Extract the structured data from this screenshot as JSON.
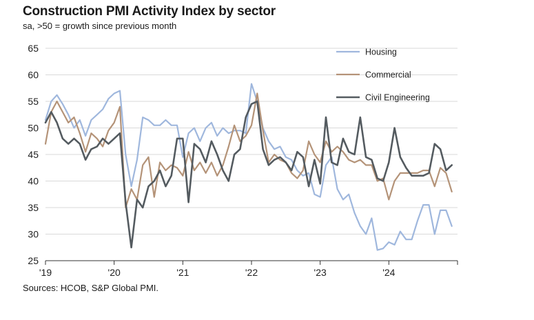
{
  "header": {
    "title": "Construction PMI Activity Index by sector",
    "subtitle": "sa, >50 = growth since previous month"
  },
  "footer": {
    "source": "Sources: HCOB, S&P Global PMI."
  },
  "colors": {
    "Housing": "#9fb7dd",
    "Commercial": "#b49378",
    "Civil Engineering": "#545b60"
  },
  "chart_data": {
    "type": "line",
    "title": "Construction PMI Activity Index by sector",
    "subtitle": "sa, >50 = growth since previous month",
    "xlabel": "",
    "ylabel": "",
    "ylim": [
      25,
      65
    ],
    "yticks": [
      25,
      30,
      35,
      40,
      45,
      50,
      55,
      60,
      65
    ],
    "xlim": [
      2019.0,
      2025.0
    ],
    "xticks": [
      {
        "label": "'19",
        "x": 2019.0
      },
      {
        "label": "'20",
        "x": 2020.0
      },
      {
        "label": "'21",
        "x": 2021.0
      },
      {
        "label": "'22",
        "x": 2022.0
      },
      {
        "label": "'23",
        "x": 2023.0
      },
      {
        "label": "'24",
        "x": 2024.0
      }
    ],
    "grid": true,
    "legend": "top-right",
    "x_start": "2019-01",
    "series": [
      {
        "name": "Housing",
        "values": [
          51.5,
          55.0,
          56.2,
          54.5,
          52.5,
          50.0,
          51.5,
          48.5,
          51.5,
          52.5,
          53.5,
          55.5,
          56.5,
          57.0,
          45.0,
          39.0,
          44.0,
          52.0,
          51.5,
          50.5,
          50.5,
          51.5,
          50.5,
          50.5,
          44.5,
          49.0,
          50.0,
          47.5,
          50.0,
          51.0,
          48.5,
          50.0,
          49.0,
          49.5,
          49.5,
          49.0,
          58.3,
          55.0,
          50.0,
          47.5,
          46.0,
          46.5,
          44.5,
          44.0,
          42.0,
          41.0,
          41.5,
          37.5,
          37.0,
          43.0,
          44.5,
          38.5,
          36.5,
          37.5,
          34.0,
          31.5,
          30.0,
          33.0,
          27.0,
          27.3,
          28.5,
          28.0,
          30.5,
          29.0,
          29.0,
          32.5,
          35.5,
          35.5,
          30.0,
          34.5,
          34.5,
          31.5
        ]
      },
      {
        "name": "Commercial",
        "values": [
          47.0,
          53.0,
          55.0,
          53.0,
          51.0,
          52.0,
          49.0,
          45.5,
          49.0,
          48.0,
          46.5,
          49.5,
          51.0,
          54.0,
          35.0,
          38.5,
          36.5,
          43.0,
          44.5,
          37.0,
          43.5,
          42.0,
          43.0,
          42.5,
          41.0,
          45.5,
          42.0,
          43.5,
          41.5,
          43.5,
          41.0,
          43.0,
          46.5,
          50.5,
          47.5,
          48.5,
          50.5,
          56.5,
          49.5,
          43.5,
          45.0,
          44.0,
          43.5,
          41.5,
          40.5,
          42.0,
          47.5,
          45.0,
          43.5,
          47.5,
          45.5,
          46.5,
          45.5,
          44.0,
          43.5,
          44.0,
          43.0,
          43.0,
          40.0,
          40.5,
          36.5,
          40.0,
          41.5,
          41.5,
          41.5,
          41.5,
          42.0,
          42.0,
          39.0,
          42.5,
          41.5,
          38.0
        ]
      },
      {
        "name": "Civil Engineering",
        "values": [
          51.0,
          53.0,
          51.0,
          48.0,
          47.0,
          48.0,
          47.0,
          44.0,
          46.0,
          46.5,
          48.0,
          47.0,
          48.0,
          49.0,
          36.0,
          27.5,
          36.5,
          35.0,
          39.0,
          40.0,
          42.0,
          39.0,
          41.0,
          48.0,
          48.0,
          36.0,
          47.0,
          46.0,
          43.5,
          47.5,
          45.0,
          42.0,
          40.0,
          45.0,
          46.0,
          52.0,
          54.5,
          55.0,
          46.0,
          43.0,
          44.0,
          44.5,
          43.5,
          42.0,
          45.5,
          44.5,
          39.0,
          44.0,
          39.5,
          52.0,
          43.5,
          43.0,
          48.0,
          45.5,
          45.0,
          52.0,
          44.5,
          44.0,
          40.5,
          40.0,
          43.5,
          50.0,
          44.5,
          42.5,
          41.0,
          41.0,
          41.0,
          41.5,
          47.0,
          46.0,
          42.0,
          43.0
        ]
      }
    ]
  }
}
